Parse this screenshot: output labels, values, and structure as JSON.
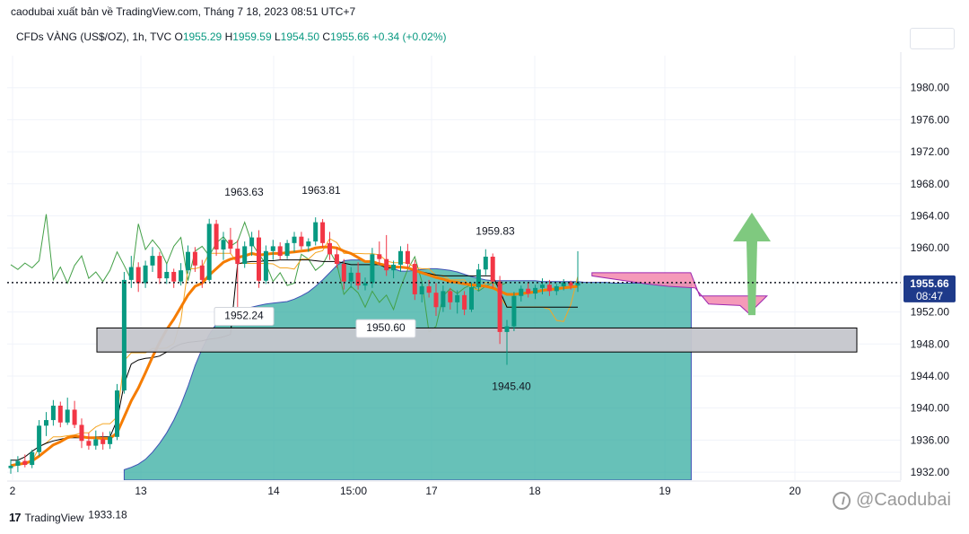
{
  "header": {
    "publish_line": "caodubai xuất bản về TradingView.com, Tháng 7 18, 2023 08:51 UTC+7",
    "symbol": "CFDs VÀNG (US$/OZ), 1h, TVC",
    "ohlc": [
      {
        "label": "O",
        "value": "1955.29"
      },
      {
        "label": "H",
        "value": "1959.59"
      },
      {
        "label": "L",
        "value": "1954.50"
      },
      {
        "label": "C",
        "value": "1955.66"
      }
    ],
    "change": "+0.34 (+0.02%)"
  },
  "footer": {
    "logo_text": "TradingView",
    "logo_mark": "17",
    "watermark": "@Caodubai"
  },
  "colors": {
    "candle_up": "#089981",
    "candle_down": "#f23645",
    "ema_orange": "#f57c00",
    "cloud_bull": "#26a69a",
    "cloud_bear": "#f48fb1",
    "zone_fill": "#c5c6cc",
    "arrow": "#7fc97f",
    "kijun": "#000000",
    "chikou": "#43a047",
    "price_tag": "#1e3a8a"
  },
  "chart_data": {
    "type": "candlestick",
    "y_axis": {
      "range": [
        1931,
        1984
      ],
      "ticks": [
        "1980.00",
        "1976.00",
        "1972.00",
        "1968.00",
        "1964.00",
        "1960.00",
        "1952.00",
        "1948.00",
        "1944.00",
        "1940.00",
        "1936.00",
        "1932.00"
      ]
    },
    "x_axis": {
      "ticks": [
        "2",
        "13",
        "14",
        "15:00",
        "17",
        "18",
        "19",
        "20"
      ]
    },
    "last_price": {
      "value": 1955.66,
      "label": "1955.66",
      "countdown": "08:47"
    },
    "annotations": [
      {
        "text": "1963.63",
        "value": 1963.63
      },
      {
        "text": "1963.81",
        "value": 1963.81
      },
      {
        "text": "1959.83",
        "value": 1959.83
      },
      {
        "text": "1952.24",
        "value": 1952.24
      },
      {
        "text": "1950.60",
        "value": 1950.6
      },
      {
        "text": "1945.40",
        "value": 1945.4
      },
      {
        "text": "1933.18",
        "value": 1933.18
      }
    ],
    "support_zone": [
      1947.0,
      1950.0
    ],
    "projection": "up",
    "candles": [
      [
        1932.5,
        1933.6,
        1931.8,
        1932.8
      ],
      [
        1932.8,
        1934.0,
        1932.0,
        1933.4
      ],
      [
        1933.4,
        1934.2,
        1932.6,
        1932.9
      ],
      [
        1932.9,
        1934.8,
        1932.5,
        1934.5
      ],
      [
        1934.5,
        1938.5,
        1934.0,
        1937.8
      ],
      [
        1937.8,
        1939.5,
        1936.5,
        1938.5
      ],
      [
        1938.5,
        1941.0,
        1937.8,
        1940.3
      ],
      [
        1940.3,
        1940.8,
        1937.6,
        1938.2
      ],
      [
        1938.2,
        1941.3,
        1937.9,
        1939.8
      ],
      [
        1939.8,
        1940.9,
        1937.5,
        1937.9
      ],
      [
        1937.9,
        1938.7,
        1935.0,
        1935.9
      ],
      [
        1935.9,
        1936.9,
        1934.8,
        1935.3
      ],
      [
        1935.3,
        1937.2,
        1934.8,
        1936.1
      ],
      [
        1936.1,
        1937.0,
        1934.8,
        1935.5
      ],
      [
        1935.5,
        1937.1,
        1934.9,
        1936.4
      ],
      [
        1936.4,
        1943.0,
        1936.0,
        1942.2
      ],
      [
        1942.2,
        1957.0,
        1941.8,
        1956.0
      ],
      [
        1956.0,
        1959.0,
        1955.0,
        1957.6
      ],
      [
        1957.6,
        1958.2,
        1954.5,
        1955.6
      ],
      [
        1955.6,
        1958.4,
        1955.0,
        1957.8
      ],
      [
        1957.8,
        1960.1,
        1957.0,
        1959.0
      ],
      [
        1959.0,
        1959.5,
        1955.5,
        1956.2
      ],
      [
        1956.2,
        1958.0,
        1955.5,
        1957.0
      ],
      [
        1957.0,
        1957.4,
        1955.0,
        1955.8
      ],
      [
        1955.8,
        1958.1,
        1955.3,
        1957.2
      ],
      [
        1957.2,
        1960.3,
        1956.8,
        1959.5
      ],
      [
        1959.5,
        1960.1,
        1957.0,
        1957.8
      ],
      [
        1957.8,
        1958.5,
        1955.0,
        1956.0
      ],
      [
        1956.0,
        1963.63,
        1955.8,
        1963.0
      ],
      [
        1963.0,
        1963.5,
        1959.0,
        1959.8
      ],
      [
        1959.8,
        1962.0,
        1958.5,
        1961.0
      ],
      [
        1961.0,
        1962.5,
        1959.3,
        1959.9
      ],
      [
        1959.9,
        1961.0,
        1952.5,
        1958.0
      ],
      [
        1958.0,
        1960.8,
        1957.5,
        1960.2
      ],
      [
        1960.2,
        1962.0,
        1959.0,
        1961.3
      ],
      [
        1961.3,
        1962.2,
        1955.0,
        1955.9
      ],
      [
        1955.9,
        1960.3,
        1955.5,
        1959.6
      ],
      [
        1959.6,
        1961.0,
        1958.5,
        1960.2
      ],
      [
        1960.2,
        1960.7,
        1958.5,
        1959.0
      ],
      [
        1959.0,
        1961.0,
        1958.6,
        1960.6
      ],
      [
        1960.6,
        1962.0,
        1959.5,
        1961.4
      ],
      [
        1961.4,
        1962.0,
        1959.8,
        1960.2
      ],
      [
        1960.2,
        1961.2,
        1959.5,
        1960.8
      ],
      [
        1960.8,
        1963.81,
        1960.3,
        1963.2
      ],
      [
        1963.2,
        1963.6,
        1960.0,
        1960.6
      ],
      [
        1960.6,
        1962.0,
        1958.5,
        1959.2
      ],
      [
        1959.2,
        1960.0,
        1957.5,
        1958.0
      ],
      [
        1958.0,
        1958.6,
        1954.8,
        1955.8
      ],
      [
        1955.8,
        1957.6,
        1955.0,
        1956.9
      ],
      [
        1956.9,
        1958.2,
        1954.8,
        1955.3
      ],
      [
        1955.3,
        1956.3,
        1954.7,
        1955.6
      ],
      [
        1955.6,
        1960.0,
        1955.0,
        1959.2
      ],
      [
        1959.2,
        1960.8,
        1957.8,
        1958.6
      ],
      [
        1958.6,
        1961.6,
        1956.5,
        1957.2
      ],
      [
        1957.2,
        1958.4,
        1956.2,
        1957.9
      ],
      [
        1957.9,
        1960.2,
        1957.0,
        1959.6
      ],
      [
        1959.6,
        1960.5,
        1957.5,
        1958.0
      ],
      [
        1958.0,
        1958.5,
        1953.5,
        1954.2
      ],
      [
        1954.2,
        1955.8,
        1953.2,
        1955.2
      ],
      [
        1955.2,
        1956.0,
        1953.8,
        1954.4
      ],
      [
        1954.4,
        1955.6,
        1951.5,
        1952.6
      ],
      [
        1952.6,
        1955.3,
        1952.0,
        1954.6
      ],
      [
        1954.6,
        1955.0,
        1952.3,
        1953.2
      ],
      [
        1953.2,
        1954.7,
        1951.8,
        1954.1
      ],
      [
        1954.1,
        1954.6,
        1951.6,
        1952.3
      ],
      [
        1952.3,
        1955.7,
        1952.0,
        1955.1
      ],
      [
        1955.1,
        1958.0,
        1954.6,
        1957.3
      ],
      [
        1957.3,
        1959.83,
        1956.6,
        1958.9
      ],
      [
        1958.9,
        1959.3,
        1955.0,
        1955.8
      ],
      [
        1955.8,
        1956.5,
        1948.0,
        1949.5
      ],
      [
        1949.5,
        1951.0,
        1945.4,
        1950.2
      ],
      [
        1950.2,
        1954.5,
        1949.6,
        1954.0
      ],
      [
        1954.0,
        1955.3,
        1953.3,
        1954.9
      ],
      [
        1954.9,
        1955.7,
        1953.8,
        1954.3
      ],
      [
        1954.3,
        1955.4,
        1953.6,
        1955.0
      ],
      [
        1955.0,
        1956.2,
        1954.2,
        1955.4
      ],
      [
        1955.4,
        1956.0,
        1954.0,
        1954.6
      ],
      [
        1954.6,
        1955.5,
        1954.1,
        1955.2
      ],
      [
        1955.2,
        1956.1,
        1954.7,
        1955.7
      ],
      [
        1955.7,
        1955.9,
        1954.8,
        1955.3
      ],
      [
        1955.29,
        1959.59,
        1954.5,
        1955.66
      ]
    ],
    "ema_orange": [
      1932.8,
      1933.0,
      1933.1,
      1933.4,
      1934.0,
      1934.7,
      1935.4,
      1935.8,
      1936.3,
      1936.5,
      1936.4,
      1936.3,
      1936.3,
      1936.2,
      1936.2,
      1936.9,
      1938.9,
      1940.9,
      1942.5,
      1944.4,
      1946.4,
      1948.2,
      1949.8,
      1951.1,
      1952.6,
      1954.1,
      1955.2,
      1955.6,
      1956.6,
      1957.4,
      1958.2,
      1958.6,
      1958.8,
      1959.0,
      1959.3,
      1959.1,
      1959.2,
      1959.3,
      1959.3,
      1959.4,
      1959.5,
      1959.6,
      1959.7,
      1960.0,
      1960.1,
      1960.1,
      1960.0,
      1959.6,
      1959.3,
      1958.8,
      1958.3,
      1958.3,
      1958.0,
      1957.8,
      1957.6,
      1957.6,
      1957.5,
      1957.2,
      1956.9,
      1956.6,
      1956.3,
      1956.1,
      1955.8,
      1955.7,
      1955.5,
      1955.4,
      1955.3,
      1955.2,
      1955.0,
      1954.6,
      1954.2,
      1954.2,
      1954.3,
      1954.4,
      1954.5,
      1954.7,
      1954.8,
      1954.9,
      1955.0,
      1955.1,
      1955.2
    ],
    "kijun": [
      1933.5,
      1933.5,
      1933.9,
      1934.6,
      1935.2,
      1935.6,
      1935.9,
      1936.1,
      1936.3,
      1936.3,
      1936.3,
      1936.3,
      1936.4,
      1936.4,
      1936.4,
      1938.5,
      1943.0,
      1945.5,
      1946.0,
      1946.2,
      1946.3,
      1946.5,
      1947.0,
      1947.6,
      1948.0,
      1948.2,
      1948.3,
      1948.4,
      1948.6,
      1948.7,
      1948.9,
      1949.2,
      1958.0,
      1958.2,
      1958.3,
      1958.3,
      1958.4,
      1958.4,
      1958.5,
      1958.5,
      1958.5,
      1958.5,
      1958.5,
      1958.4,
      1958.3,
      1958.3,
      1958.3,
      1958.1,
      1957.9,
      1957.9,
      1957.9,
      1957.9,
      1957.9,
      1957.5,
      1957.5,
      1957.5,
      1957.5,
      1957.3,
      1957.0,
      1956.8,
      1956.6,
      1956.5,
      1956.5,
      1956.5,
      1956.5,
      1956.5,
      1956.5,
      1956.5,
      1956.5,
      1954.6,
      1952.6,
      1952.6,
      1952.6,
      1952.6,
      1952.6,
      1952.6,
      1952.6,
      1952.6,
      1952.6,
      1952.6,
      1952.6
    ],
    "cloud": {
      "upper": [
        1932.3,
        1932.6,
        1933.0,
        1933.6,
        1934.5,
        1935.6,
        1936.9,
        1938.5,
        1940.4,
        1942.7,
        1945.3,
        1947.4,
        1949.2,
        1950.5,
        1951.3,
        1951.8,
        1952.1,
        1952.4,
        1952.6,
        1952.8,
        1953.0,
        1953.1,
        1953.2,
        1953.3,
        1953.6,
        1954.0,
        1954.5,
        1955.2,
        1956.0,
        1956.9,
        1957.8,
        1958.4,
        1958.5,
        1958.5,
        1958.4,
        1958.2,
        1958.0,
        1957.7,
        1957.4,
        1957.1,
        1957.1,
        1957.2,
        1957.3,
        1957.4,
        1957.4,
        1957.3,
        1957.2,
        1957.0,
        1956.7,
        1956.4,
        1956.2,
        1956.0,
        1955.9,
        1955.9,
        1955.9,
        1955.9,
        1955.9,
        1955.9,
        1955.9,
        1955.8,
        1955.8,
        1955.8,
        1955.8,
        1955.8,
        1955.8,
        1955.7,
        1955.7,
        1955.7,
        1955.7,
        1955.6,
        1955.6,
        1955.6,
        1955.6,
        1955.6,
        1955.6,
        1955.6,
        1955.6,
        1955.6,
        1955.6,
        1955.6,
        1955.6
      ],
      "lower": [
        1931.0,
        1931.0,
        1931.0,
        1931.0,
        1931.0,
        1931.0,
        1931.0,
        1931.0,
        1931.0,
        1931.0,
        1931.0,
        1931.0,
        1931.0,
        1931.0,
        1931.0,
        1931.0,
        1931.0,
        1931.0,
        1931.0,
        1931.0,
        1931.0,
        1931.0,
        1931.0,
        1931.0,
        1931.0,
        1931.0,
        1931.0,
        1931.0,
        1931.0,
        1931.0,
        1931.0,
        1931.0,
        1931.0,
        1931.0,
        1931.0,
        1931.0,
        1931.0,
        1931.0,
        1931.0,
        1931.0,
        1931.0,
        1931.0,
        1931.0,
        1931.0,
        1931.0,
        1931.0,
        1931.0,
        1931.0,
        1931.0,
        1931.0,
        1931.0,
        1931.0,
        1931.0,
        1931.0,
        1931.0,
        1931.0,
        1931.0,
        1931.0,
        1931.0,
        1931.0,
        1931.0,
        1931.0,
        1931.0,
        1931.0,
        1931.0,
        1931.0,
        1931.0,
        1931.0,
        1931.0,
        1931.0,
        1931.0,
        1931.0,
        1931.0,
        1931.0,
        1931.0,
        1931.0,
        1931.0,
        1931.0,
        1931.0,
        1931.0,
        1931.0
      ]
    }
  }
}
